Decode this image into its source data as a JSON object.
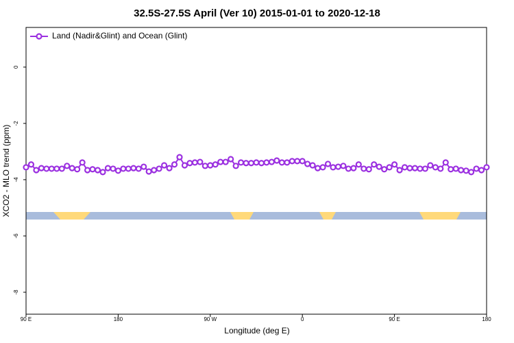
{
  "chart_data": {
    "type": "line",
    "title": "32.5S-27.5S April (Ver 10)   2015-01-01 to 2020-12-18",
    "x_label": "Longitude (deg E)",
    "y_label": "XCO2 - MLO trend (ppm)",
    "xlim": [
      90,
      540
    ],
    "ylim": [
      -8.78,
      1.41
    ],
    "xticks": [
      {
        "value": 90,
        "label": "90 E"
      },
      180,
      {
        "value": 270,
        "label": "90 W"
      },
      {
        "value": 360,
        "label": "0"
      },
      {
        "value": 450,
        "label": "90 E"
      },
      {
        "value": 540,
        "label": "180"
      }
    ],
    "yticks": [
      0,
      -2,
      -4,
      -6,
      -8
    ],
    "legend": "top-left",
    "x": [
      90,
      95,
      100,
      105,
      110,
      115,
      120,
      125,
      130,
      135,
      140,
      145,
      150,
      155,
      160,
      165,
      170,
      175,
      180,
      185,
      190,
      195,
      200,
      205,
      210,
      215,
      220,
      225,
      230,
      235,
      240,
      245,
      250,
      255,
      260,
      265,
      270,
      275,
      280,
      285,
      290,
      295,
      300,
      305,
      310,
      315,
      320,
      325,
      330,
      335,
      340,
      345,
      350,
      355,
      360,
      365,
      370,
      375,
      380,
      385,
      390,
      395,
      400,
      405,
      410,
      415,
      420,
      425,
      430,
      435,
      440,
      445,
      450,
      455,
      460,
      465,
      470,
      475,
      480,
      485,
      490,
      495,
      500,
      505,
      510,
      515,
      520,
      525,
      530,
      535,
      540
    ],
    "series": [
      {
        "name": "Land (Nadir&Glint) and Ocean (Glint)",
        "color": "#9b30e0",
        "values": [
          -3.56,
          -3.46,
          -3.66,
          -3.59,
          -3.61,
          -3.61,
          -3.61,
          -3.61,
          -3.51,
          -3.59,
          -3.63,
          -3.39,
          -3.66,
          -3.63,
          -3.66,
          -3.73,
          -3.59,
          -3.61,
          -3.68,
          -3.61,
          -3.61,
          -3.59,
          -3.61,
          -3.54,
          -3.71,
          -3.66,
          -3.61,
          -3.49,
          -3.59,
          -3.46,
          -3.2,
          -3.49,
          -3.41,
          -3.39,
          -3.37,
          -3.51,
          -3.49,
          -3.46,
          -3.37,
          -3.37,
          -3.27,
          -3.51,
          -3.39,
          -3.41,
          -3.41,
          -3.39,
          -3.41,
          -3.39,
          -3.37,
          -3.32,
          -3.39,
          -3.39,
          -3.34,
          -3.34,
          -3.34,
          -3.44,
          -3.49,
          -3.59,
          -3.56,
          -3.44,
          -3.56,
          -3.54,
          -3.51,
          -3.61,
          -3.59,
          -3.46,
          -3.61,
          -3.63,
          -3.46,
          -3.54,
          -3.63,
          -3.56,
          -3.46,
          -3.66,
          -3.56,
          -3.59,
          -3.59,
          -3.61,
          -3.61,
          -3.49,
          -3.56,
          -3.61,
          -3.39,
          -3.63,
          -3.61,
          -3.66,
          -3.68,
          -3.73,
          -3.61,
          -3.66,
          -3.56
        ]
      }
    ]
  }
}
